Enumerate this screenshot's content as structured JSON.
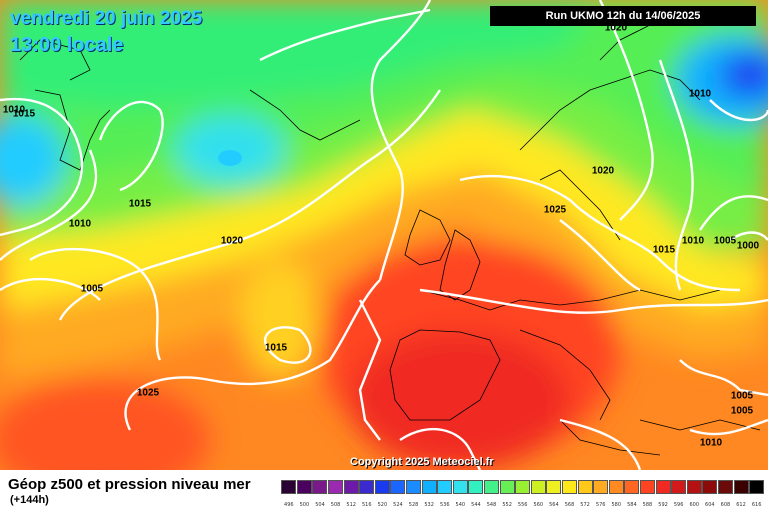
{
  "map": {
    "title_date": "vendredi 20 juin 2025",
    "title_time": "13:00 locale",
    "run_info": "Run UKMO 12h du 14/06/2025",
    "copyright": "Copyright 2025 Meteociel.fr",
    "variable": "Géop z500 et pression niveau mer",
    "lead_time": "(+144h)",
    "isobar_labels": [
      "1010",
      "1015",
      "1015",
      "1010",
      "1005",
      "1020",
      "1015",
      "1025",
      "1020",
      "1025",
      "1020",
      "1010",
      "1015",
      "1010",
      "1005",
      "1000",
      "1005",
      "1005",
      "1010"
    ],
    "colors": {
      "land_lines": "#000000",
      "isobars": "#ffffff",
      "title": "#33c8ff"
    }
  },
  "legend": {
    "ticks": [
      "496",
      "500",
      "504",
      "508",
      "512",
      "516",
      "520",
      "524",
      "528",
      "532",
      "536",
      "540",
      "544",
      "548",
      "552",
      "556",
      "560",
      "564",
      "568",
      "572",
      "576",
      "580",
      "584",
      "588",
      "592",
      "596",
      "600",
      "604",
      "608",
      "612",
      "616"
    ],
    "colors": [
      "#2b0033",
      "#4b0060",
      "#7a1a8a",
      "#9a2ab0",
      "#6e1aa8",
      "#3a2ad0",
      "#1a3af0",
      "#1a66ff",
      "#1a8cff",
      "#11b0ff",
      "#22ccff",
      "#33e0ee",
      "#33f0c0",
      "#44f088",
      "#66f055",
      "#99f033",
      "#ccf022",
      "#eef022",
      "#ffe81a",
      "#ffc81a",
      "#ffaa22",
      "#ff8a22",
      "#ff6622",
      "#ff4422",
      "#f02a22",
      "#d21a1a",
      "#b41212",
      "#8c0a0a",
      "#6a0a0a",
      "#3a0000",
      "#000000"
    ]
  }
}
